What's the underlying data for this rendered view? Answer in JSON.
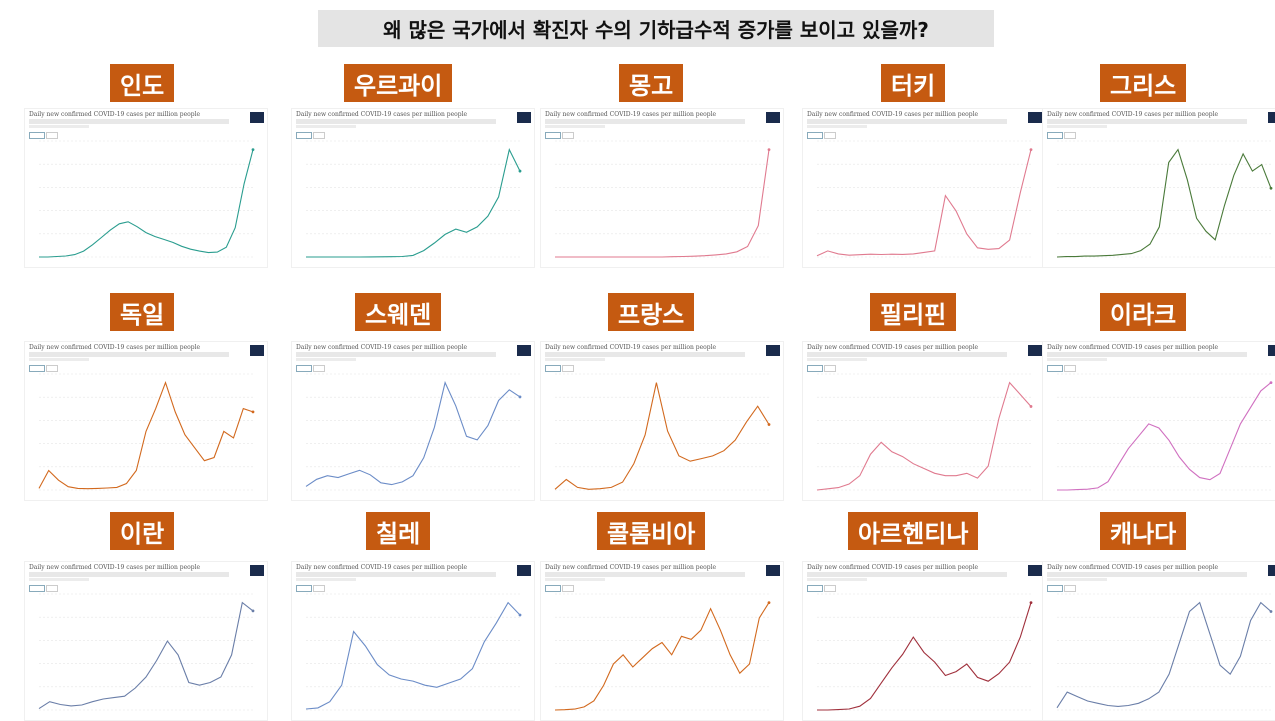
{
  "title": "왜 많은 국가에서 확진자 수의 기하급수적 증가를 보이고 있을까?",
  "panel_header": "Daily new confirmed COVID-19 cases per million people",
  "chart_data": [
    {
      "type": "line",
      "country": "인도",
      "color": "#2a9d8f",
      "values": [
        0,
        0,
        1,
        2,
        5,
        12,
        25,
        40,
        55,
        68,
        72,
        62,
        50,
        42,
        36,
        30,
        22,
        16,
        12,
        9,
        10,
        20,
        60,
        150,
        220
      ]
    },
    {
      "type": "line",
      "country": "우르과이",
      "color": "#2a9d8f",
      "values": [
        0,
        0,
        0,
        0,
        0,
        0,
        1,
        2,
        3,
        5,
        15,
        60,
        130,
        210,
        260,
        230,
        280,
        380,
        560,
        1000,
        800
      ]
    },
    {
      "type": "line",
      "country": "몽고",
      "color": "#e07a8f",
      "values": [
        0,
        0,
        0,
        0,
        0,
        0,
        0,
        0,
        0,
        0,
        0,
        1,
        2,
        3,
        5,
        8,
        12,
        20,
        40,
        120,
        410
      ]
    },
    {
      "type": "line",
      "country": "터키",
      "color": "#e07a8f",
      "values": [
        8,
        40,
        20,
        12,
        15,
        18,
        16,
        18,
        17,
        20,
        30,
        40,
        400,
        300,
        150,
        60,
        50,
        55,
        110,
        420,
        700
      ]
    },
    {
      "type": "line",
      "country": "그리스",
      "color": "#4a7a3a",
      "values": [
        0,
        1,
        1,
        2,
        2,
        3,
        4,
        6,
        8,
        15,
        30,
        70,
        220,
        250,
        180,
        90,
        60,
        40,
        120,
        190,
        240,
        200,
        215,
        160
      ]
    },
    {
      "type": "line",
      "country": "독일",
      "color": "#d2691e",
      "values": [
        5,
        60,
        30,
        10,
        5,
        4,
        5,
        6,
        8,
        20,
        60,
        180,
        250,
        330,
        240,
        170,
        130,
        90,
        100,
        180,
        160,
        250,
        240
      ]
    },
    {
      "type": "line",
      "country": "스웨덴",
      "color": "#6b8cc7",
      "values": [
        20,
        60,
        80,
        70,
        90,
        110,
        85,
        40,
        30,
        45,
        80,
        180,
        350,
        600,
        470,
        300,
        280,
        360,
        500,
        560,
        520
      ]
    },
    {
      "type": "line",
      "country": "프랑스",
      "color": "#d2691e",
      "values": [
        5,
        80,
        20,
        5,
        10,
        20,
        60,
        200,
        420,
        820,
        450,
        260,
        220,
        240,
        260,
        300,
        380,
        520,
        640,
        500
      ]
    },
    {
      "type": "line",
      "country": "필리핀",
      "color": "#e07a8f",
      "values": [
        0,
        1,
        2,
        5,
        12,
        30,
        40,
        32,
        28,
        22,
        18,
        14,
        12,
        12,
        14,
        10,
        20,
        60,
        90,
        80,
        70
      ]
    },
    {
      "type": "line",
      "country": "이라크",
      "color": "#d070c0",
      "values": [
        0,
        0,
        1,
        2,
        5,
        20,
        60,
        100,
        130,
        160,
        150,
        120,
        80,
        50,
        30,
        25,
        40,
        100,
        160,
        200,
        240,
        260
      ]
    },
    {
      "type": "line",
      "country": "이란",
      "color": "#6a7ea8",
      "values": [
        5,
        30,
        20,
        15,
        18,
        30,
        40,
        45,
        50,
        80,
        120,
        180,
        250,
        200,
        100,
        90,
        100,
        120,
        200,
        390,
        360
      ]
    },
    {
      "type": "line",
      "country": "칠레",
      "color": "#6b8cc7",
      "values": [
        5,
        10,
        40,
        120,
        380,
        310,
        220,
        170,
        150,
        140,
        120,
        110,
        130,
        150,
        200,
        330,
        420,
        520,
        460
      ]
    },
    {
      "type": "line",
      "country": "콜롬비아",
      "color": "#d2691e",
      "values": [
        0,
        1,
        3,
        10,
        30,
        80,
        150,
        180,
        140,
        170,
        200,
        220,
        180,
        240,
        230,
        260,
        330,
        260,
        180,
        120,
        150,
        300,
        350
      ]
    },
    {
      "type": "line",
      "country": "아르헨티나",
      "color": "#a0303c",
      "values": [
        0,
        0,
        2,
        5,
        20,
        60,
        140,
        220,
        290,
        380,
        300,
        250,
        180,
        200,
        240,
        170,
        150,
        190,
        250,
        380,
        560
      ]
    },
    {
      "type": "line",
      "country": "캐나다",
      "color": "#6a7ea8",
      "values": [
        5,
        40,
        30,
        20,
        15,
        10,
        8,
        10,
        15,
        25,
        40,
        80,
        150,
        220,
        240,
        170,
        100,
        80,
        120,
        200,
        240,
        220
      ]
    }
  ]
}
